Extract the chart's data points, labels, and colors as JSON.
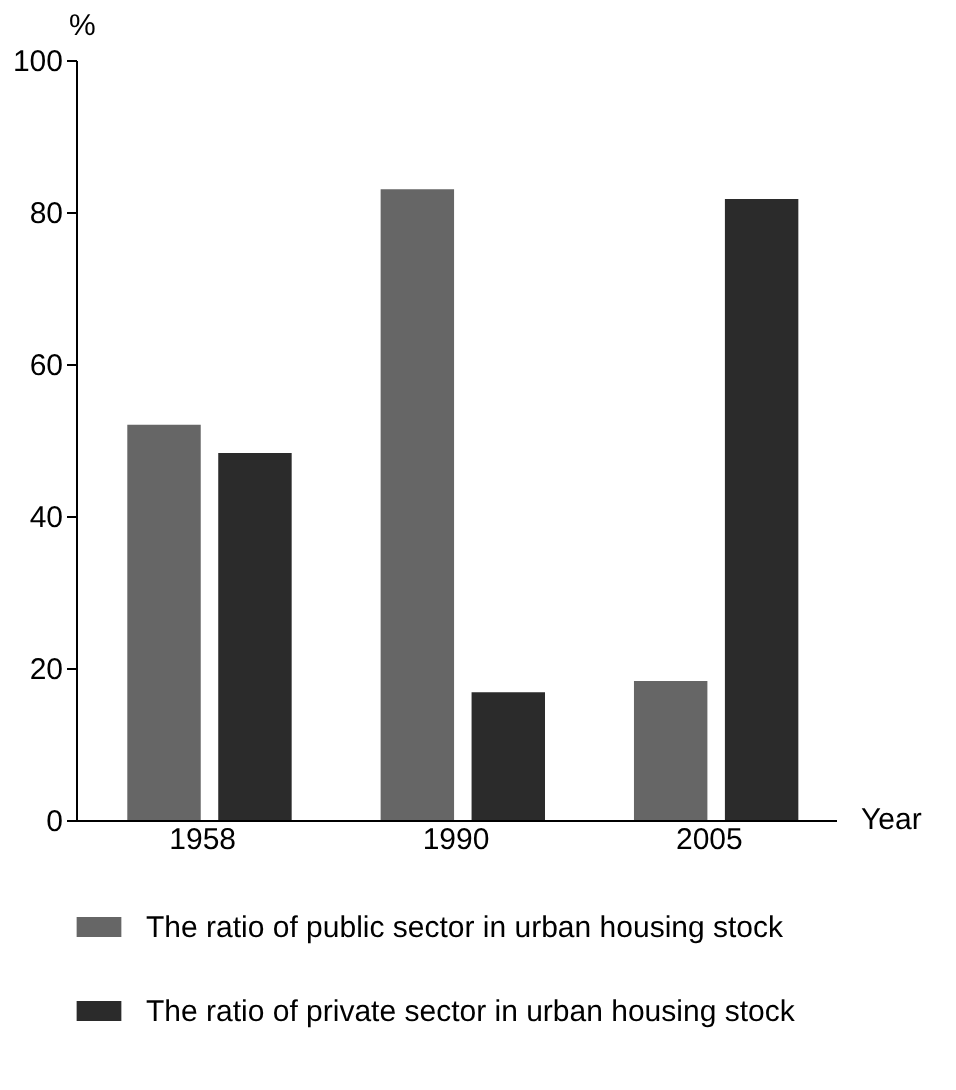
{
  "chart_data": {
    "type": "bar",
    "xlabel": "Year",
    "ylabel": "%",
    "categories": [
      "1958",
      "1990",
      "2005"
    ],
    "series": [
      {
        "name": "The ratio of public sector in urban housing stock",
        "color": "#666666",
        "values": [
          52,
          83,
          18.3
        ]
      },
      {
        "name": "The ratio of private sector in urban housing stock",
        "color": "#2b2b2b",
        "values": [
          48.3,
          16.8,
          81.7
        ]
      }
    ],
    "ylim": [
      0,
      100
    ],
    "yticks": [
      0,
      20,
      40,
      60,
      80,
      100
    ],
    "grid": false,
    "legend": "bottom"
  }
}
